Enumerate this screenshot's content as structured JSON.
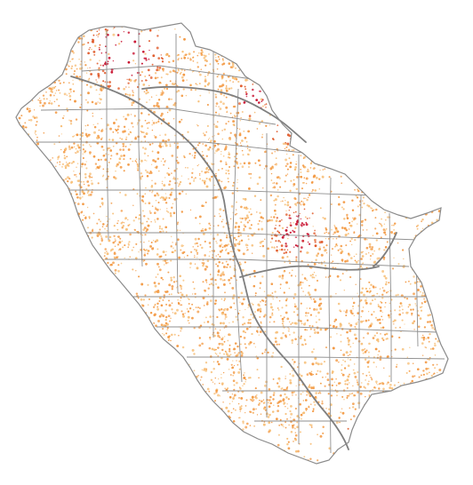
{
  "map": {
    "palette": {
      "background": "#ffffff",
      "county_line": "#8f8f8f",
      "river_line": "#7f7f7f",
      "region_outline": "#8a8a8a",
      "dot_light": "#f7c07a",
      "dot_mid": "#f39a45",
      "dot_high": "#e05a2a",
      "dot_peak": "#c8102e"
    },
    "layers": [
      {
        "name": "region-outline",
        "kind": "polygon"
      },
      {
        "name": "county-grid",
        "kind": "lines"
      },
      {
        "name": "rivers",
        "kind": "lines"
      },
      {
        "name": "density-dots",
        "kind": "points"
      }
    ]
  }
}
